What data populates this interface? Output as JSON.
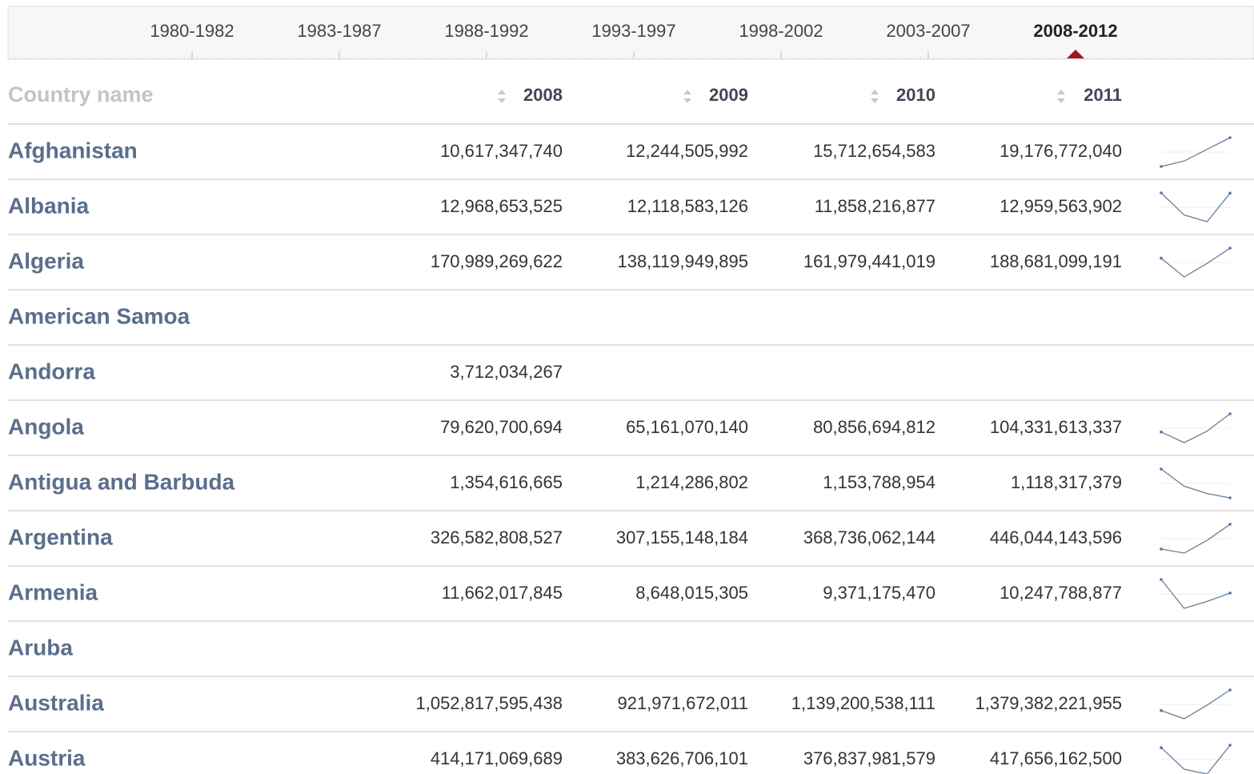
{
  "tabs": [
    {
      "label": "1980-1982"
    },
    {
      "label": "1983-1987"
    },
    {
      "label": "1988-1992"
    },
    {
      "label": "1993-1997"
    },
    {
      "label": "1998-2002"
    },
    {
      "label": "2003-2007"
    },
    {
      "label": "2008-2012",
      "selected": true
    }
  ],
  "table": {
    "name_header": "Country name",
    "years": [
      "2008",
      "2009",
      "2010",
      "2011"
    ],
    "rows": [
      {
        "name": "Afghanistan",
        "values": [
          "10,617,347,740",
          "12,244,505,992",
          "15,712,654,583",
          "19,176,772,040"
        ]
      },
      {
        "name": "Albania",
        "values": [
          "12,968,653,525",
          "12,118,583,126",
          "11,858,216,877",
          "12,959,563,902"
        ]
      },
      {
        "name": "Algeria",
        "values": [
          "170,989,269,622",
          "138,119,949,895",
          "161,979,441,019",
          "188,681,099,191"
        ]
      },
      {
        "name": "American Samoa",
        "values": [
          null,
          null,
          null,
          null
        ]
      },
      {
        "name": "Andorra",
        "values": [
          "3,712,034,267",
          null,
          null,
          null
        ]
      },
      {
        "name": "Angola",
        "values": [
          "79,620,700,694",
          "65,161,070,140",
          "80,856,694,812",
          "104,331,613,337"
        ]
      },
      {
        "name": "Antigua and Barbuda",
        "values": [
          "1,354,616,665",
          "1,214,286,802",
          "1,153,788,954",
          "1,118,317,379"
        ]
      },
      {
        "name": "Argentina",
        "values": [
          "326,582,808,527",
          "307,155,148,184",
          "368,736,062,144",
          "446,044,143,596"
        ]
      },
      {
        "name": "Armenia",
        "values": [
          "11,662,017,845",
          "8,648,015,305",
          "9,371,175,470",
          "10,247,788,877"
        ]
      },
      {
        "name": "Aruba",
        "values": [
          null,
          null,
          null,
          null
        ]
      },
      {
        "name": "Australia",
        "values": [
          "1,052,817,595,438",
          "921,971,672,011",
          "1,139,200,538,111",
          "1,379,382,221,955"
        ]
      },
      {
        "name": "Austria",
        "values": [
          "414,171,069,689",
          "383,626,706,101",
          "376,837,981,579",
          "417,656,162,500"
        ]
      }
    ]
  }
}
